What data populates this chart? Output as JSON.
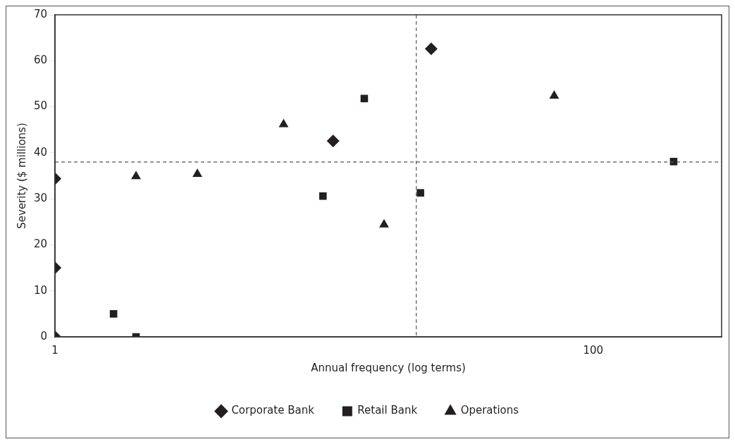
{
  "chart_data": {
    "type": "scatter",
    "xlabel": "Annual frequency (log terms)",
    "ylabel": "Severity ($ millions)",
    "log": "x",
    "xlim": [
      1,
      300
    ],
    "xticks": [
      1,
      100
    ],
    "ylim": [
      0,
      70
    ],
    "yticks": [
      0,
      10,
      20,
      30,
      40,
      50,
      60,
      70
    ],
    "grid": false,
    "legend": "bottom",
    "series": [
      {
        "name": "Corporate Bank",
        "color": "#231f20",
        "marker": "diamond",
        "x": [
          1,
          1,
          1,
          10.8,
          25
        ],
        "values": [
          0,
          15,
          34.4,
          42.6,
          62.6
        ]
      },
      {
        "name": "Retail Bank",
        "color": "#231f20",
        "marker": "square",
        "x": [
          1.65,
          2,
          9.9,
          14.1,
          22.8,
          199
        ],
        "values": [
          5,
          0,
          30.6,
          51.8,
          31.3,
          38.1
        ]
      },
      {
        "name": "Operations",
        "color": "#231f20",
        "marker": "triangle",
        "x": [
          2,
          3.38,
          7.07,
          16.7,
          71.6
        ],
        "values": [
          34.9,
          35.4,
          46.2,
          24.4,
          52.4
        ]
      }
    ],
    "ref_lines": [
      {
        "axis": "x",
        "value": 22,
        "color": "#555555",
        "line_style": "dashed"
      },
      {
        "axis": "y",
        "value": 38,
        "color": "#555555",
        "line_style": "dashed"
      }
    ]
  }
}
